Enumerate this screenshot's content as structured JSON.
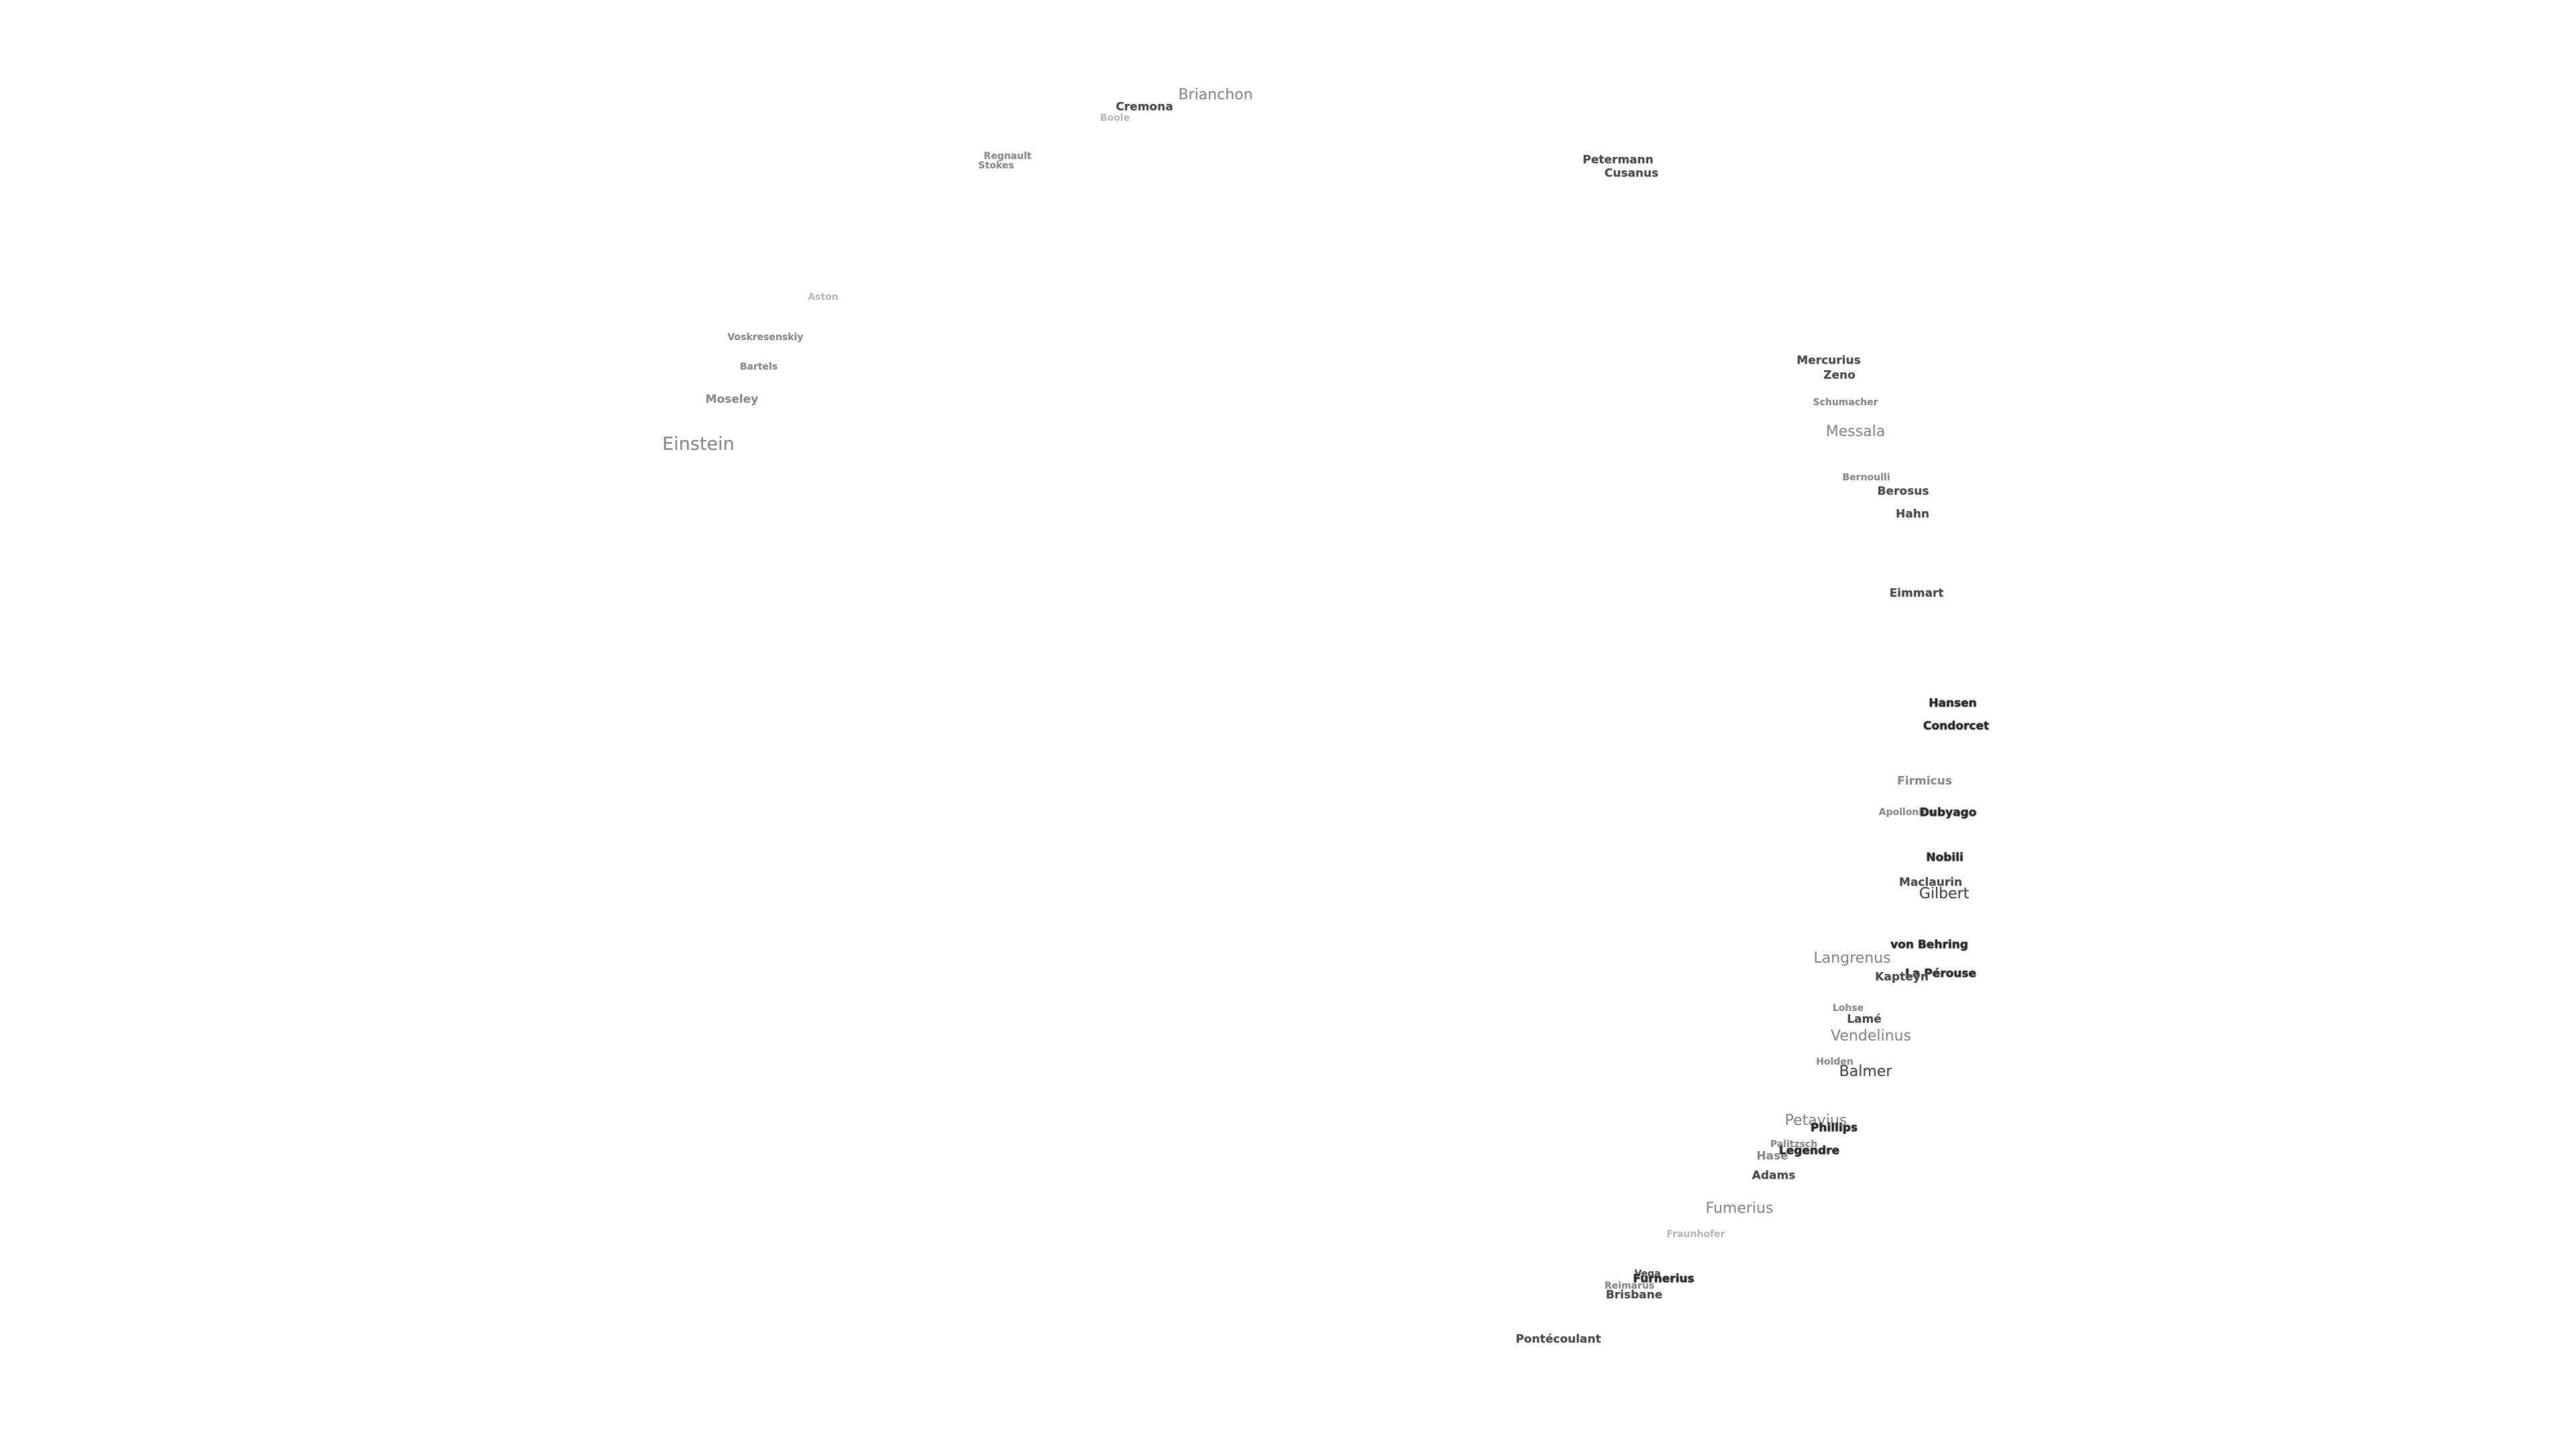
{
  "map": {
    "labels": [
      {
        "text": "Brianchon",
        "tier": 2,
        "size": 3
      },
      {
        "text": "Cremona",
        "tier": 1,
        "size": 2
      },
      {
        "text": "Boole",
        "tier": 3,
        "size": 1
      },
      {
        "text": "Regnault",
        "tier": 2,
        "size": 1
      },
      {
        "text": "Stokes",
        "tier": 2,
        "size": 1
      },
      {
        "text": "Petermann",
        "tier": 1,
        "size": 2
      },
      {
        "text": "Cusanus",
        "tier": 1,
        "size": 2
      },
      {
        "text": "Aston",
        "tier": 3,
        "size": 1
      },
      {
        "text": "Voskresenskiy",
        "tier": 2,
        "size": 1
      },
      {
        "text": "Bartels",
        "tier": 2,
        "size": 1
      },
      {
        "text": "Moseley",
        "tier": 2,
        "size": 2
      },
      {
        "text": "Einstein",
        "tier": 2,
        "size": 4
      },
      {
        "text": "Mercurius",
        "tier": 1,
        "size": 2
      },
      {
        "text": "Zeno",
        "tier": 1,
        "size": 2
      },
      {
        "text": "Schumacher",
        "tier": 2,
        "size": 1
      },
      {
        "text": "Messala",
        "tier": 2,
        "size": 3
      },
      {
        "text": "Bernoulli",
        "tier": 2,
        "size": 1
      },
      {
        "text": "Berosus",
        "tier": 1,
        "size": 2
      },
      {
        "text": "Hahn",
        "tier": 1,
        "size": 2
      },
      {
        "text": "Eimmart",
        "tier": 1,
        "size": 2
      },
      {
        "text": "Hansen",
        "tier": 0,
        "size": 2
      },
      {
        "text": "Condorcet",
        "tier": 0,
        "size": 2
      },
      {
        "text": "Firmicus",
        "tier": 2,
        "size": 2
      },
      {
        "text": "Apollonius",
        "tier": 2,
        "size": 1
      },
      {
        "text": "Dubyago",
        "tier": 0,
        "size": 2
      },
      {
        "text": "Nobili",
        "tier": 0,
        "size": 2
      },
      {
        "text": "Maclaurin",
        "tier": 1,
        "size": 2
      },
      {
        "text": "Gilbert",
        "tier": 1,
        "size": 3
      },
      {
        "text": "von Behring",
        "tier": 0,
        "size": 2
      },
      {
        "text": "Langrenus",
        "tier": 2,
        "size": 3
      },
      {
        "text": "La Pérouse",
        "tier": 0,
        "size": 2
      },
      {
        "text": "Kapteyn",
        "tier": 1,
        "size": 2
      },
      {
        "text": "Lohse",
        "tier": 2,
        "size": 1
      },
      {
        "text": "Lamé",
        "tier": 1,
        "size": 2
      },
      {
        "text": "Vendelinus",
        "tier": 2,
        "size": 3
      },
      {
        "text": "Holden",
        "tier": 2,
        "size": 1
      },
      {
        "text": "Balmer",
        "tier": 1,
        "size": 3
      },
      {
        "text": "Petavius",
        "tier": 2,
        "size": 3
      },
      {
        "text": "Phillips",
        "tier": 0,
        "size": 2
      },
      {
        "text": "Palitzsch",
        "tier": 2,
        "size": 1
      },
      {
        "text": "Hase",
        "tier": 2,
        "size": 2
      },
      {
        "text": "Legendre",
        "tier": 0,
        "size": 2
      },
      {
        "text": "Adams",
        "tier": 1,
        "size": 2
      },
      {
        "text": "Fumerius",
        "tier": 2,
        "size": 3
      },
      {
        "text": "Fraunhofer",
        "tier": 3,
        "size": 1
      },
      {
        "text": "Vega",
        "tier": 1,
        "size": 1
      },
      {
        "text": "Reimarus",
        "tier": 2,
        "size": 1
      },
      {
        "text": "Furnerius",
        "tier": 0,
        "size": 2
      },
      {
        "text": "Brisbane",
        "tier": 1,
        "size": 2
      },
      {
        "text": "Pontécoulant",
        "tier": 1,
        "size": 2
      }
    ]
  }
}
